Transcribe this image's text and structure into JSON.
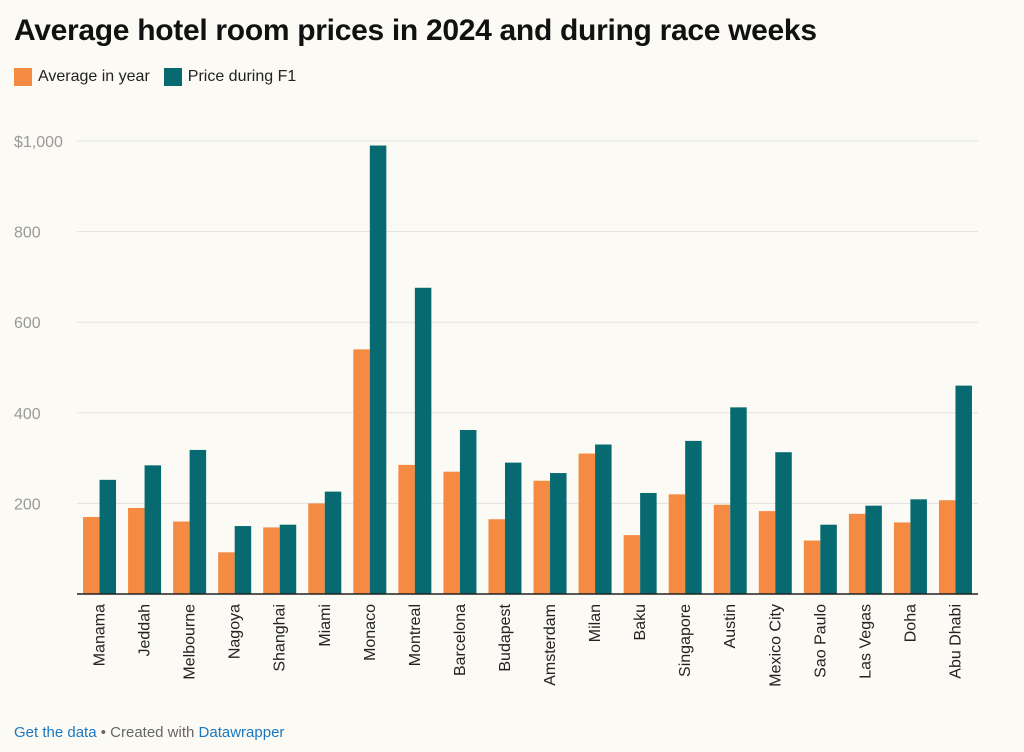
{
  "title": "Average hotel room prices in 2024 and during race weeks",
  "legend": [
    {
      "label": "Average in year",
      "color": "#f58a42"
    },
    {
      "label": "Price during F1",
      "color": "#076a70"
    }
  ],
  "footer": {
    "get_data": "Get the data",
    "separator": " • Created with ",
    "tool": "Datawrapper"
  },
  "chart_data": {
    "type": "bar",
    "title": "Average hotel room prices in 2024 and during race weeks",
    "xlabel": "",
    "ylabel": "",
    "ylim": [
      0,
      1000
    ],
    "yticks": [
      0,
      200,
      400,
      600,
      800,
      1000
    ],
    "ytick_labels": [
      "",
      "200",
      "400",
      "600",
      "800",
      "$1,000"
    ],
    "grid": true,
    "legend_position": "top-left",
    "categories": [
      "Manama",
      "Jeddah",
      "Melbourne",
      "Nagoya",
      "Shanghai",
      "Miami",
      "Monaco",
      "Montreal",
      "Barcelona",
      "Budapest",
      "Amsterdam",
      "Milan",
      "Baku",
      "Singapore",
      "Austin",
      "Mexico City",
      "Sao Paulo",
      "Las Vegas",
      "Doha",
      "Abu Dhabi"
    ],
    "series": [
      {
        "name": "Average in year",
        "color": "#f58a42",
        "values": [
          170,
          190,
          160,
          92,
          147,
          200,
          540,
          285,
          270,
          165,
          250,
          310,
          130,
          220,
          197,
          183,
          118,
          177,
          158,
          207
        ]
      },
      {
        "name": "Price during F1",
        "color": "#076a70",
        "values": [
          252,
          284,
          318,
          150,
          153,
          226,
          990,
          676,
          362,
          290,
          267,
          330,
          223,
          338,
          412,
          313,
          153,
          195,
          209,
          460
        ]
      }
    ]
  }
}
